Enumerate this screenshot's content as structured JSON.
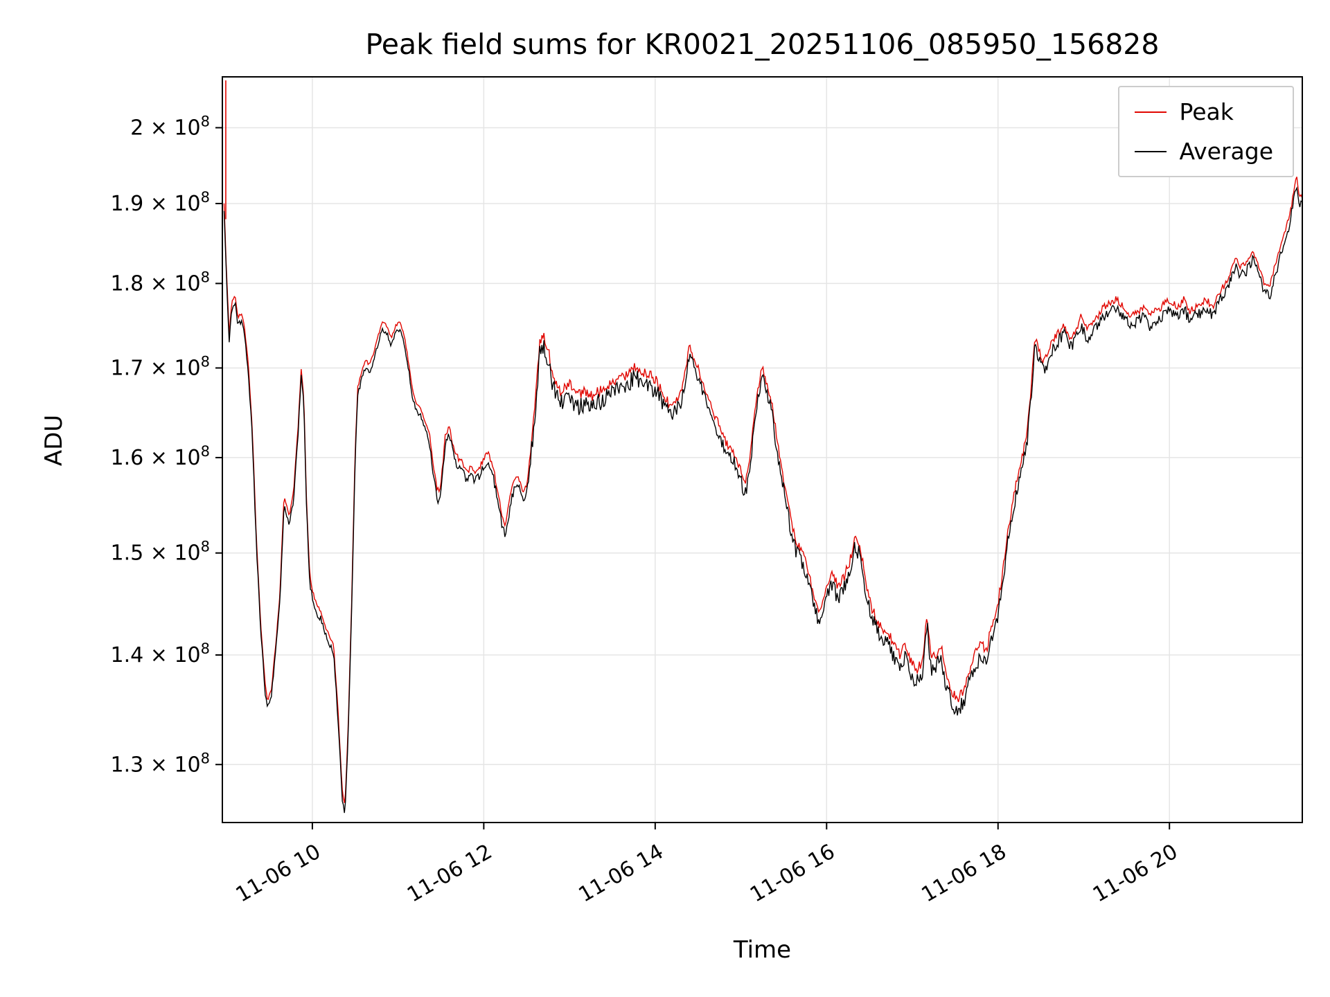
{
  "figure": {
    "background": "#ffffff",
    "grid_color": "#e5e5e5",
    "spine_color": "#000000",
    "tick_color": "#000000"
  },
  "chart_data": {
    "type": "line",
    "title": "Peak field sums for KR0021_20251106_085950_156828",
    "xlabel": "Time",
    "ylabel": "ADU",
    "y_scale": "log",
    "y_unit_exponent": "8",
    "grid": true,
    "legend_position": "upper right",
    "x_range": [
      8.95,
      21.55
    ],
    "y_range_e8": [
      1.25,
      2.07
    ],
    "x_ticks": [
      {
        "t": 10,
        "label": "11-06 10"
      },
      {
        "t": 12,
        "label": "11-06 12"
      },
      {
        "t": 14,
        "label": "11-06 14"
      },
      {
        "t": 16,
        "label": "11-06 16"
      },
      {
        "t": 18,
        "label": "11-06 18"
      },
      {
        "t": 20,
        "label": "11-06 20"
      }
    ],
    "y_ticks": [
      {
        "v": 2.0,
        "mantissa": "2"
      },
      {
        "v": 1.9,
        "mantissa": "1.9"
      },
      {
        "v": 1.8,
        "mantissa": "1.8"
      },
      {
        "v": 1.7,
        "mantissa": "1.7"
      },
      {
        "v": 1.6,
        "mantissa": "1.6"
      },
      {
        "v": 1.5,
        "mantissa": "1.5"
      },
      {
        "v": 1.4,
        "mantissa": "1.4"
      },
      {
        "v": 1.3,
        "mantissa": "1.3"
      }
    ],
    "series": [
      {
        "name": "Peak",
        "color": "#e10600"
      },
      {
        "name": "Average",
        "color": "#000000"
      }
    ],
    "peak_offset_fraction": 0.004,
    "noise_seed": 42,
    "sample_step_hours": 0.012,
    "peak_spike": {
      "t": 8.99,
      "from_e8": 1.88,
      "top_e8": 2.065
    },
    "noise_regions": [
      {
        "from": 8.95,
        "to": 11.35,
        "amp": 0.003
      },
      {
        "from": 11.35,
        "to": 12.55,
        "amp": 0.005
      },
      {
        "from": 12.55,
        "to": 14.35,
        "amp": 0.01
      },
      {
        "from": 14.35,
        "to": 15.35,
        "amp": 0.007
      },
      {
        "from": 15.35,
        "to": 18.35,
        "amp": 0.008
      },
      {
        "from": 18.35,
        "to": 20.65,
        "amp": 0.007
      },
      {
        "from": 20.65,
        "to": 21.55,
        "amp": 0.006
      }
    ],
    "average_keypoints_e8": [
      [
        8.97,
        1.89
      ],
      [
        9.0,
        1.8
      ],
      [
        9.03,
        1.73
      ],
      [
        9.06,
        1.77
      ],
      [
        9.1,
        1.775
      ],
      [
        9.13,
        1.75
      ],
      [
        9.17,
        1.755
      ],
      [
        9.2,
        1.745
      ],
      [
        9.25,
        1.7
      ],
      [
        9.3,
        1.62
      ],
      [
        9.35,
        1.5
      ],
      [
        9.4,
        1.42
      ],
      [
        9.45,
        1.365
      ],
      [
        9.48,
        1.35
      ],
      [
        9.52,
        1.36
      ],
      [
        9.57,
        1.4
      ],
      [
        9.62,
        1.45
      ],
      [
        9.67,
        1.55
      ],
      [
        9.7,
        1.54
      ],
      [
        9.73,
        1.53
      ],
      [
        9.78,
        1.555
      ],
      [
        9.83,
        1.62
      ],
      [
        9.87,
        1.69
      ],
      [
        9.9,
        1.66
      ],
      [
        9.93,
        1.55
      ],
      [
        9.97,
        1.47
      ],
      [
        10.0,
        1.455
      ],
      [
        10.05,
        1.44
      ],
      [
        10.1,
        1.435
      ],
      [
        10.15,
        1.42
      ],
      [
        10.2,
        1.41
      ],
      [
        10.25,
        1.4
      ],
      [
        10.3,
        1.34
      ],
      [
        10.35,
        1.27
      ],
      [
        10.38,
        1.258
      ],
      [
        10.42,
        1.33
      ],
      [
        10.46,
        1.45
      ],
      [
        10.5,
        1.6
      ],
      [
        10.53,
        1.67
      ],
      [
        10.57,
        1.685
      ],
      [
        10.62,
        1.7
      ],
      [
        10.67,
        1.695
      ],
      [
        10.72,
        1.71
      ],
      [
        10.77,
        1.73
      ],
      [
        10.82,
        1.745
      ],
      [
        10.87,
        1.74
      ],
      [
        10.92,
        1.725
      ],
      [
        10.97,
        1.74
      ],
      [
        11.02,
        1.745
      ],
      [
        11.07,
        1.73
      ],
      [
        11.12,
        1.7
      ],
      [
        11.17,
        1.665
      ],
      [
        11.22,
        1.65
      ],
      [
        11.27,
        1.645
      ],
      [
        11.32,
        1.63
      ],
      [
        11.37,
        1.615
      ],
      [
        11.42,
        1.575
      ],
      [
        11.46,
        1.555
      ],
      [
        11.5,
        1.56
      ],
      [
        11.55,
        1.615
      ],
      [
        11.6,
        1.625
      ],
      [
        11.65,
        1.6
      ],
      [
        11.7,
        1.59
      ],
      [
        11.75,
        1.585
      ],
      [
        11.8,
        1.575
      ],
      [
        11.85,
        1.58
      ],
      [
        11.9,
        1.575
      ],
      [
        11.95,
        1.58
      ],
      [
        12.0,
        1.59
      ],
      [
        12.05,
        1.595
      ],
      [
        12.1,
        1.585
      ],
      [
        12.15,
        1.56
      ],
      [
        12.2,
        1.535
      ],
      [
        12.25,
        1.515
      ],
      [
        12.3,
        1.545
      ],
      [
        12.35,
        1.565
      ],
      [
        12.4,
        1.57
      ],
      [
        12.45,
        1.555
      ],
      [
        12.5,
        1.56
      ],
      [
        12.55,
        1.6
      ],
      [
        12.6,
        1.65
      ],
      [
        12.65,
        1.715
      ],
      [
        12.7,
        1.725
      ],
      [
        12.75,
        1.71
      ],
      [
        12.8,
        1.68
      ],
      [
        12.85,
        1.67
      ],
      [
        12.9,
        1.66
      ],
      [
        12.95,
        1.665
      ],
      [
        13.0,
        1.67
      ],
      [
        13.08,
        1.655
      ],
      [
        13.17,
        1.66
      ],
      [
        13.25,
        1.655
      ],
      [
        13.33,
        1.66
      ],
      [
        13.42,
        1.665
      ],
      [
        13.5,
        1.67
      ],
      [
        13.58,
        1.675
      ],
      [
        13.67,
        1.68
      ],
      [
        13.75,
        1.69
      ],
      [
        13.83,
        1.685
      ],
      [
        13.92,
        1.68
      ],
      [
        14.0,
        1.675
      ],
      [
        14.08,
        1.66
      ],
      [
        14.17,
        1.645
      ],
      [
        14.25,
        1.65
      ],
      [
        14.33,
        1.67
      ],
      [
        14.4,
        1.715
      ],
      [
        14.45,
        1.7
      ],
      [
        14.5,
        1.69
      ],
      [
        14.58,
        1.665
      ],
      [
        14.67,
        1.64
      ],
      [
        14.75,
        1.625
      ],
      [
        14.83,
        1.605
      ],
      [
        14.92,
        1.595
      ],
      [
        15.0,
        1.575
      ],
      [
        15.05,
        1.56
      ],
      [
        15.1,
        1.585
      ],
      [
        15.15,
        1.63
      ],
      [
        15.2,
        1.665
      ],
      [
        15.25,
        1.69
      ],
      [
        15.3,
        1.67
      ],
      [
        15.35,
        1.655
      ],
      [
        15.42,
        1.61
      ],
      [
        15.5,
        1.565
      ],
      [
        15.58,
        1.525
      ],
      [
        15.65,
        1.5
      ],
      [
        15.72,
        1.49
      ],
      [
        15.8,
        1.465
      ],
      [
        15.87,
        1.44
      ],
      [
        15.93,
        1.43
      ],
      [
        16.0,
        1.455
      ],
      [
        16.07,
        1.47
      ],
      [
        16.13,
        1.455
      ],
      [
        16.2,
        1.465
      ],
      [
        16.27,
        1.48
      ],
      [
        16.33,
        1.505
      ],
      [
        16.38,
        1.5
      ],
      [
        16.45,
        1.465
      ],
      [
        16.52,
        1.435
      ],
      [
        16.58,
        1.425
      ],
      [
        16.65,
        1.415
      ],
      [
        16.72,
        1.41
      ],
      [
        16.78,
        1.4
      ],
      [
        16.85,
        1.39
      ],
      [
        16.92,
        1.4
      ],
      [
        16.98,
        1.385
      ],
      [
        17.05,
        1.375
      ],
      [
        17.12,
        1.385
      ],
      [
        17.17,
        1.43
      ],
      [
        17.22,
        1.385
      ],
      [
        17.28,
        1.39
      ],
      [
        17.33,
        1.4
      ],
      [
        17.4,
        1.37
      ],
      [
        17.47,
        1.355
      ],
      [
        17.53,
        1.35
      ],
      [
        17.6,
        1.355
      ],
      [
        17.67,
        1.375
      ],
      [
        17.73,
        1.39
      ],
      [
        17.8,
        1.4
      ],
      [
        17.87,
        1.395
      ],
      [
        17.93,
        1.42
      ],
      [
        18.0,
        1.44
      ],
      [
        18.07,
        1.48
      ],
      [
        18.13,
        1.52
      ],
      [
        18.2,
        1.555
      ],
      [
        18.27,
        1.585
      ],
      [
        18.33,
        1.61
      ],
      [
        18.38,
        1.66
      ],
      [
        18.43,
        1.725
      ],
      [
        18.48,
        1.71
      ],
      [
        18.53,
        1.695
      ],
      [
        18.58,
        1.705
      ],
      [
        18.63,
        1.72
      ],
      [
        18.7,
        1.73
      ],
      [
        18.77,
        1.74
      ],
      [
        18.83,
        1.725
      ],
      [
        18.9,
        1.73
      ],
      [
        18.97,
        1.75
      ],
      [
        19.03,
        1.735
      ],
      [
        19.1,
        1.74
      ],
      [
        19.17,
        1.75
      ],
      [
        19.23,
        1.76
      ],
      [
        19.3,
        1.765
      ],
      [
        19.37,
        1.77
      ],
      [
        19.43,
        1.765
      ],
      [
        19.5,
        1.755
      ],
      [
        19.57,
        1.75
      ],
      [
        19.63,
        1.755
      ],
      [
        19.7,
        1.76
      ],
      [
        19.77,
        1.75
      ],
      [
        19.83,
        1.755
      ],
      [
        19.9,
        1.76
      ],
      [
        19.97,
        1.77
      ],
      [
        20.03,
        1.765
      ],
      [
        20.1,
        1.76
      ],
      [
        20.17,
        1.77
      ],
      [
        20.23,
        1.755
      ],
      [
        20.3,
        1.76
      ],
      [
        20.37,
        1.765
      ],
      [
        20.43,
        1.77
      ],
      [
        20.5,
        1.76
      ],
      [
        20.57,
        1.775
      ],
      [
        20.63,
        1.785
      ],
      [
        20.7,
        1.8
      ],
      [
        20.77,
        1.82
      ],
      [
        20.83,
        1.81
      ],
      [
        20.9,
        1.815
      ],
      [
        20.97,
        1.83
      ],
      [
        21.03,
        1.815
      ],
      [
        21.1,
        1.79
      ],
      [
        21.17,
        1.785
      ],
      [
        21.23,
        1.81
      ],
      [
        21.3,
        1.835
      ],
      [
        21.37,
        1.86
      ],
      [
        21.43,
        1.89
      ],
      [
        21.48,
        1.925
      ],
      [
        21.52,
        1.895
      ],
      [
        21.55,
        1.9
      ]
    ]
  }
}
